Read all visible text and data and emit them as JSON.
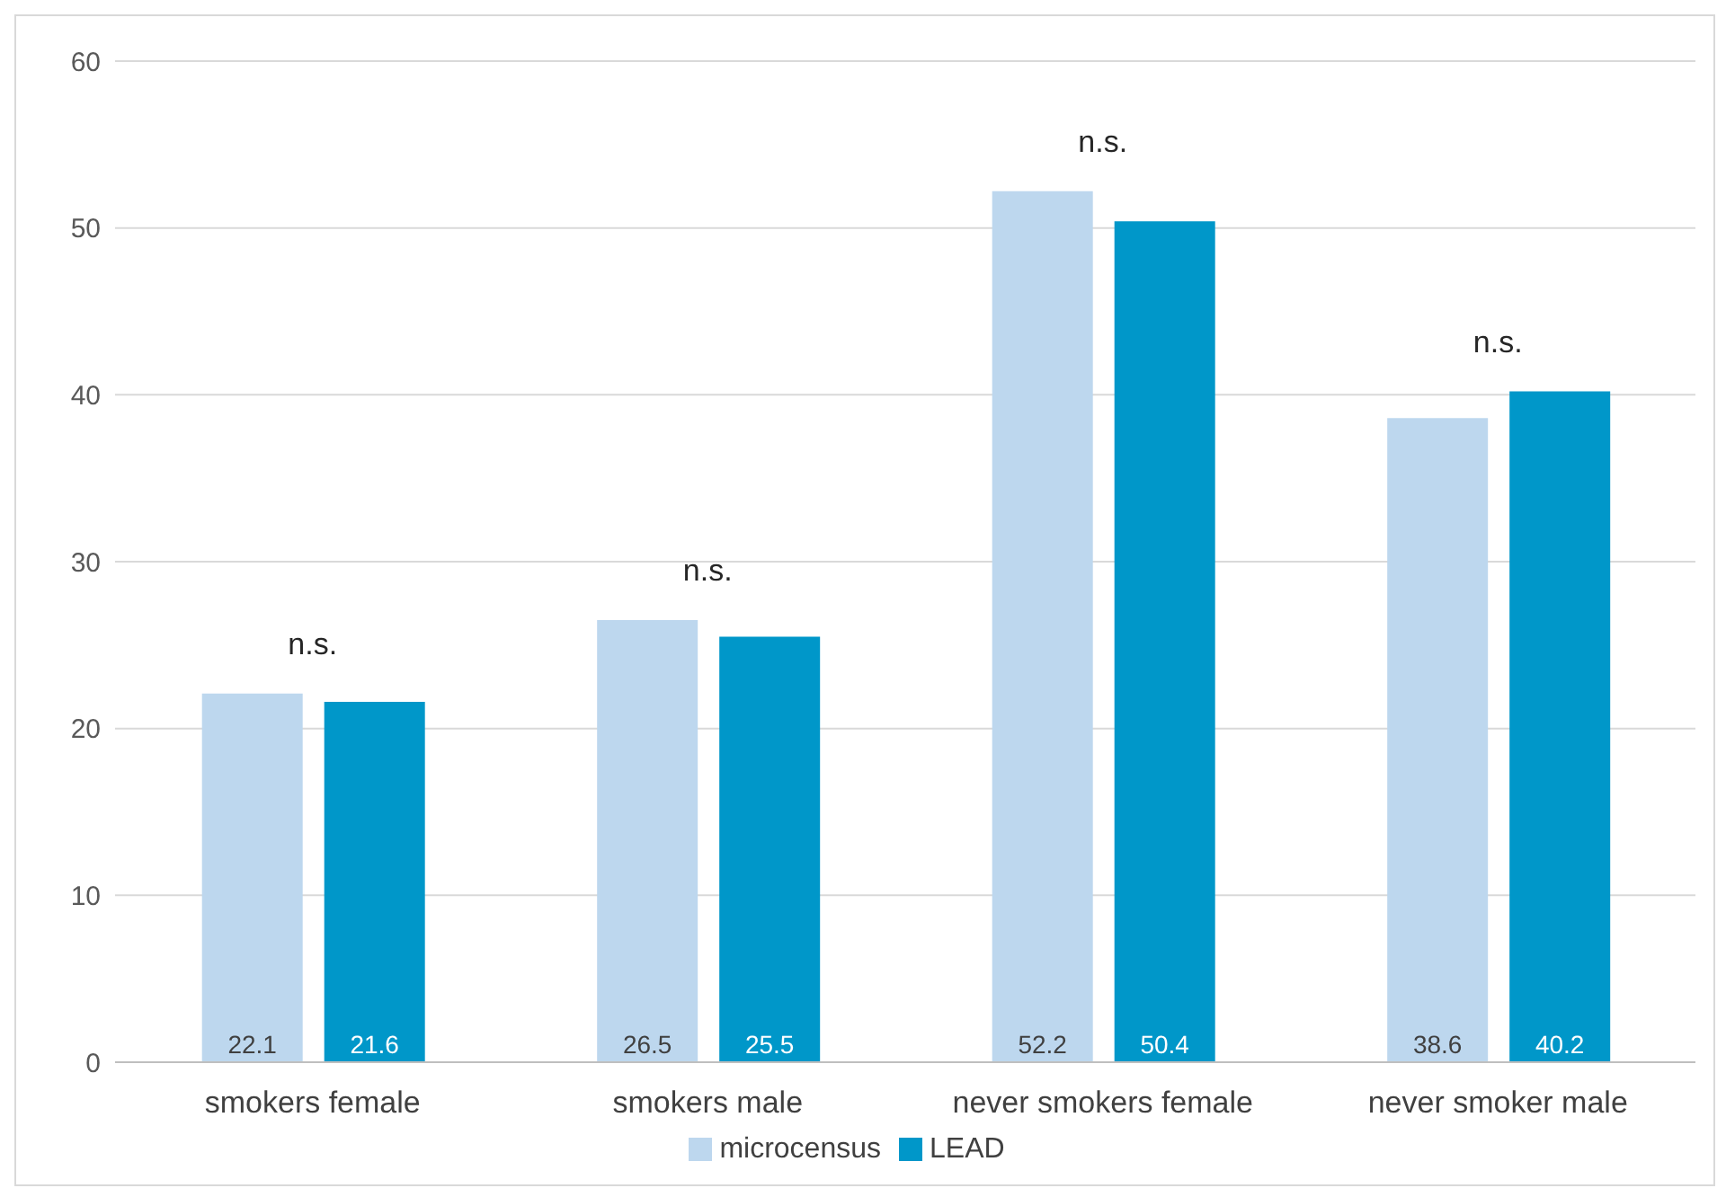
{
  "chart_data": {
    "type": "bar",
    "categories": [
      "smokers female",
      "smokers male",
      "never smokers female",
      "never smoker male"
    ],
    "series": [
      {
        "name": "microcensus",
        "color": "#bdd7ee",
        "values": [
          22.1,
          26.5,
          52.2,
          38.6
        ]
      },
      {
        "name": "LEAD",
        "color": "#0097c9",
        "values": [
          21.6,
          25.5,
          50.4,
          40.2
        ]
      }
    ],
    "ylim": [
      0,
      60
    ],
    "yticks": [
      0,
      10,
      20,
      30,
      40,
      50,
      60
    ],
    "grid": "y",
    "legend": "bottom",
    "data_labels": true,
    "annotations": [
      "n.s.",
      "n.s.",
      "n.s.",
      "n.s."
    ]
  }
}
